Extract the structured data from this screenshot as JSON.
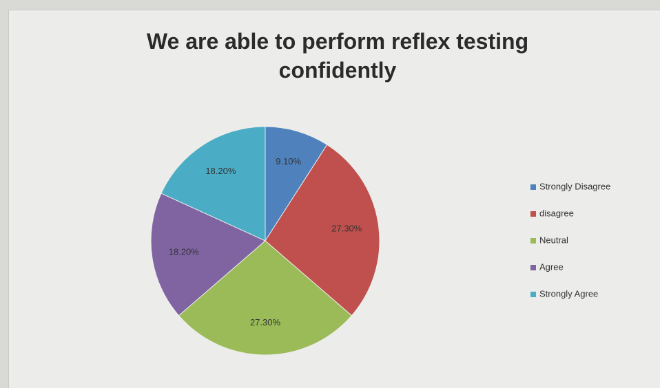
{
  "chart_data": {
    "type": "pie",
    "title": "We are able to perform reflex testing confidently",
    "categories": [
      "Strongly Disagree",
      "disagree",
      "Neutral",
      "Agree",
      "Strongly Agree"
    ],
    "values": [
      9.1,
      27.3,
      27.3,
      18.2,
      18.2
    ],
    "value_labels": [
      "9.10%",
      "27.30%",
      "27.30%",
      "18.20%",
      "18.20%"
    ],
    "colors": [
      "#4f81bd",
      "#c0504d",
      "#9bbb59",
      "#8064a2",
      "#4bacc6"
    ],
    "legend": "right"
  }
}
